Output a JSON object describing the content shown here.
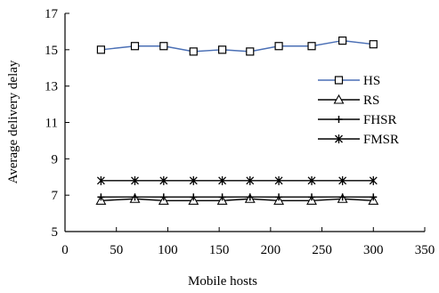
{
  "chart_data": {
    "type": "line",
    "title": "",
    "xlabel": "Mobile hosts",
    "ylabel": "Average delivery delay",
    "xlim": [
      0,
      350
    ],
    "ylim": [
      5,
      17
    ],
    "xticks": [
      0,
      50,
      100,
      150,
      200,
      250,
      300,
      350
    ],
    "yticks": [
      5,
      7,
      9,
      11,
      13,
      15,
      17
    ],
    "xtick_labels": [
      "0",
      "50",
      "100",
      "150",
      "200",
      "250",
      "300",
      "350"
    ],
    "ytick_labels": [
      "5",
      "7",
      "9",
      "11",
      "13",
      "15",
      "17"
    ],
    "grid": false,
    "legend_position": "right",
    "x": [
      35,
      68,
      96,
      125,
      153,
      180,
      208,
      240,
      270,
      300
    ],
    "series": [
      {
        "name": "HS",
        "marker": "square",
        "color": "#4a6fb5",
        "values": [
          15.0,
          15.2,
          15.2,
          14.9,
          15.0,
          14.9,
          15.2,
          15.2,
          15.5,
          15.3
        ]
      },
      {
        "name": "RS",
        "marker": "triangle",
        "color": "#000000",
        "values": [
          6.7,
          6.8,
          6.7,
          6.7,
          6.7,
          6.8,
          6.7,
          6.7,
          6.8,
          6.7
        ]
      },
      {
        "name": "FHSR",
        "marker": "plus",
        "color": "#000000",
        "values": [
          6.9,
          6.9,
          6.9,
          6.9,
          6.9,
          6.9,
          6.9,
          6.9,
          6.9,
          6.9
        ]
      },
      {
        "name": "FMSR",
        "marker": "star",
        "color": "#000000",
        "values": [
          7.8,
          7.8,
          7.8,
          7.8,
          7.8,
          7.8,
          7.8,
          7.8,
          7.8,
          7.8
        ]
      }
    ]
  }
}
